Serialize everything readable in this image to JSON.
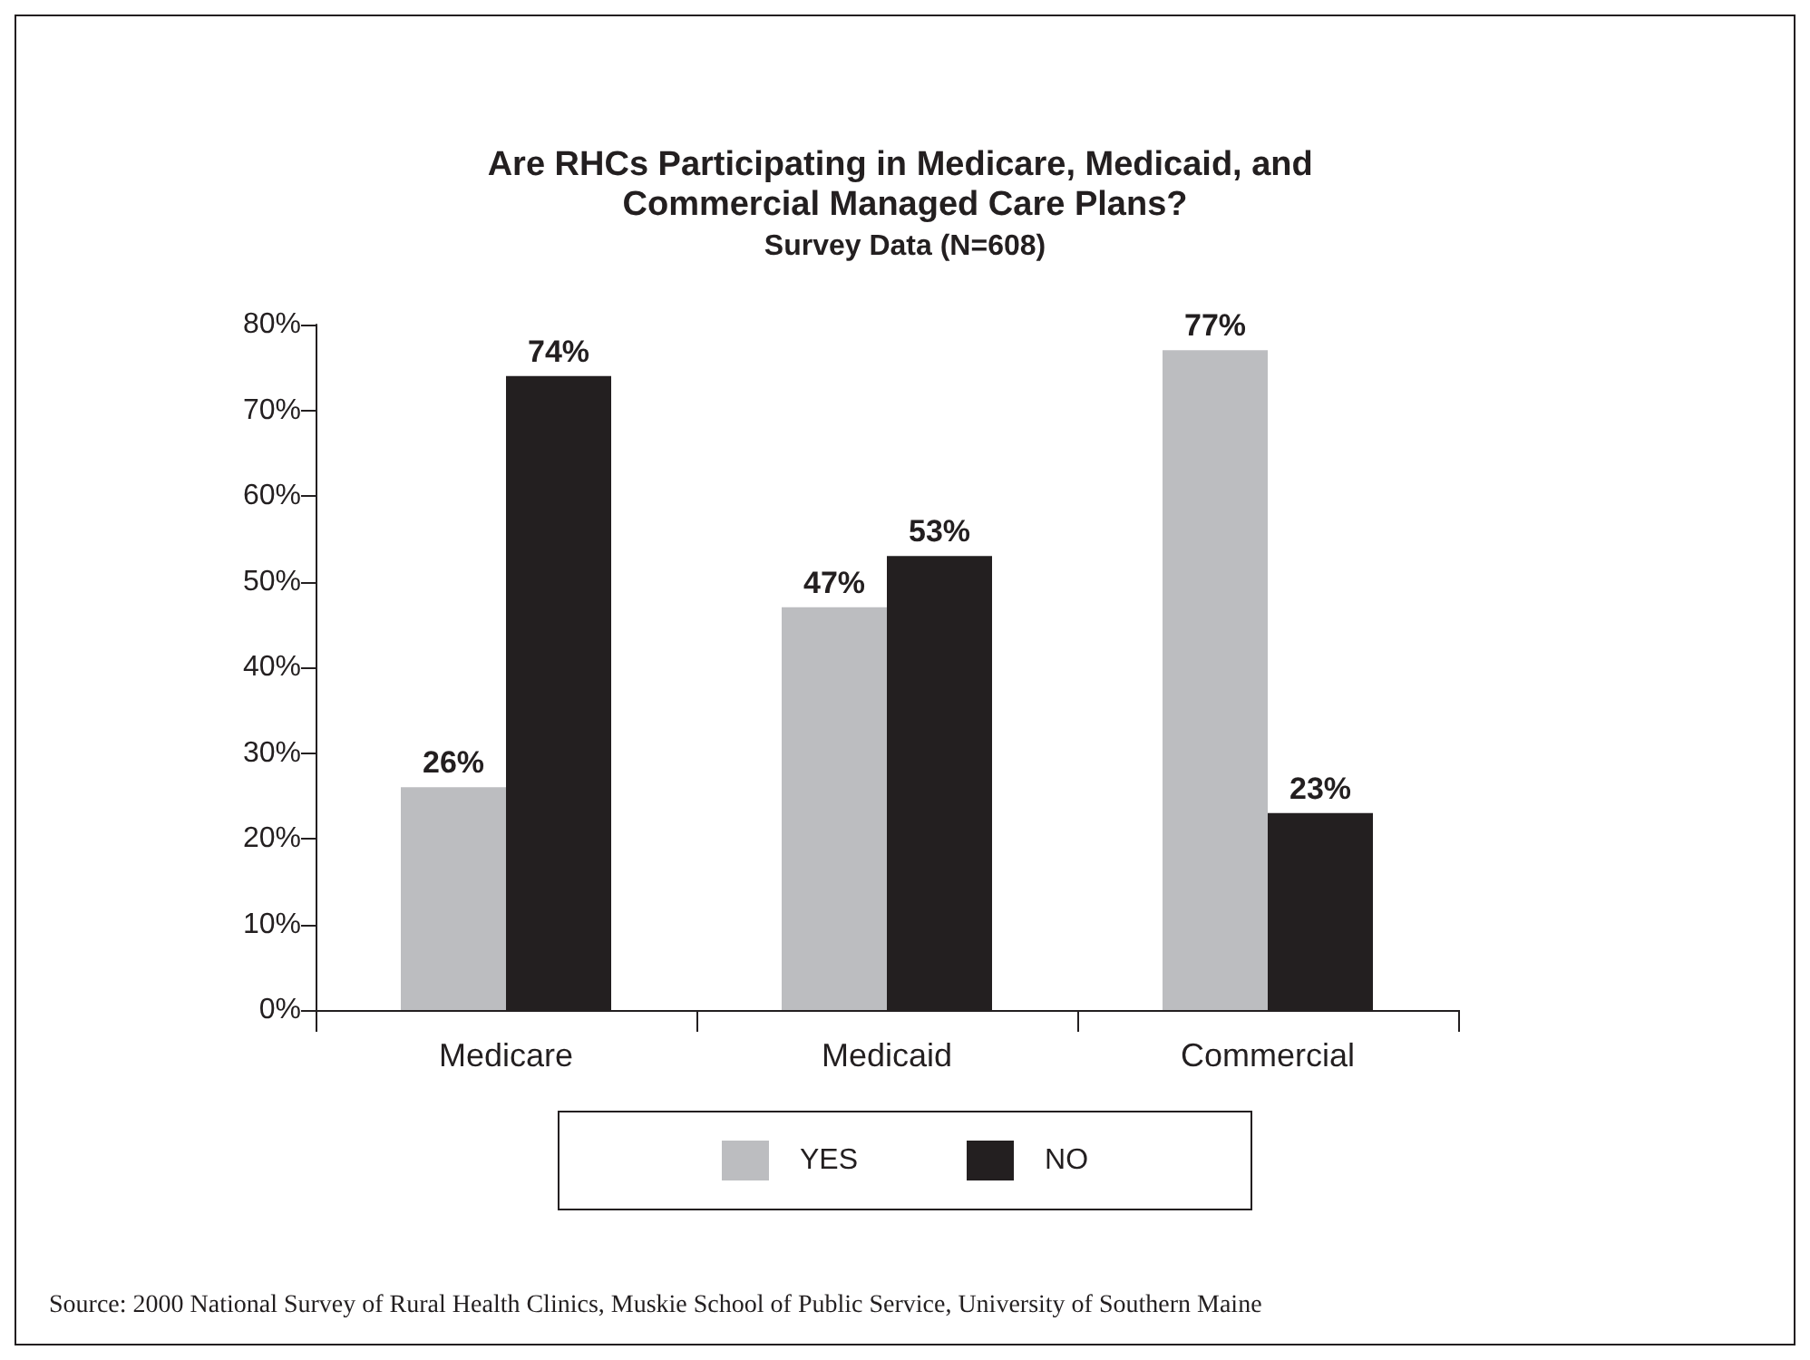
{
  "chart_data": {
    "type": "bar",
    "title": "Are RHCs Participating in Medicare, Medicaid, and Commercial Managed Care Plans?",
    "subtitle": "Survey Data (N=608)",
    "categories": [
      "Medicare",
      "Medicaid",
      "Commercial"
    ],
    "series": [
      {
        "name": "YES",
        "color": "#bcbdc0",
        "values": [
          26,
          47,
          77
        ],
        "value_labels": [
          "26%",
          "47%",
          "77%"
        ]
      },
      {
        "name": "NO",
        "color": "#231f20",
        "values": [
          74,
          53,
          23
        ],
        "value_labels": [
          "74%",
          "53%",
          "23%"
        ]
      }
    ],
    "ylim": [
      0,
      80
    ],
    "yticks": [
      {
        "value": 0,
        "label": "0%"
      },
      {
        "value": 10,
        "label": "10%"
      },
      {
        "value": 20,
        "label": "20%"
      },
      {
        "value": 30,
        "label": "30%"
      },
      {
        "value": 40,
        "label": "40%"
      },
      {
        "value": 50,
        "label": "50%"
      },
      {
        "value": 60,
        "label": "60%"
      },
      {
        "value": 70,
        "label": "70%"
      },
      {
        "value": 80,
        "label": "80%"
      }
    ],
    "grid": false,
    "legend": "bottom",
    "annotations": [
      "Source: 2000 National Survey of Rural Health Clinics, Muskie School of Public Service, University of Southern Maine"
    ]
  }
}
